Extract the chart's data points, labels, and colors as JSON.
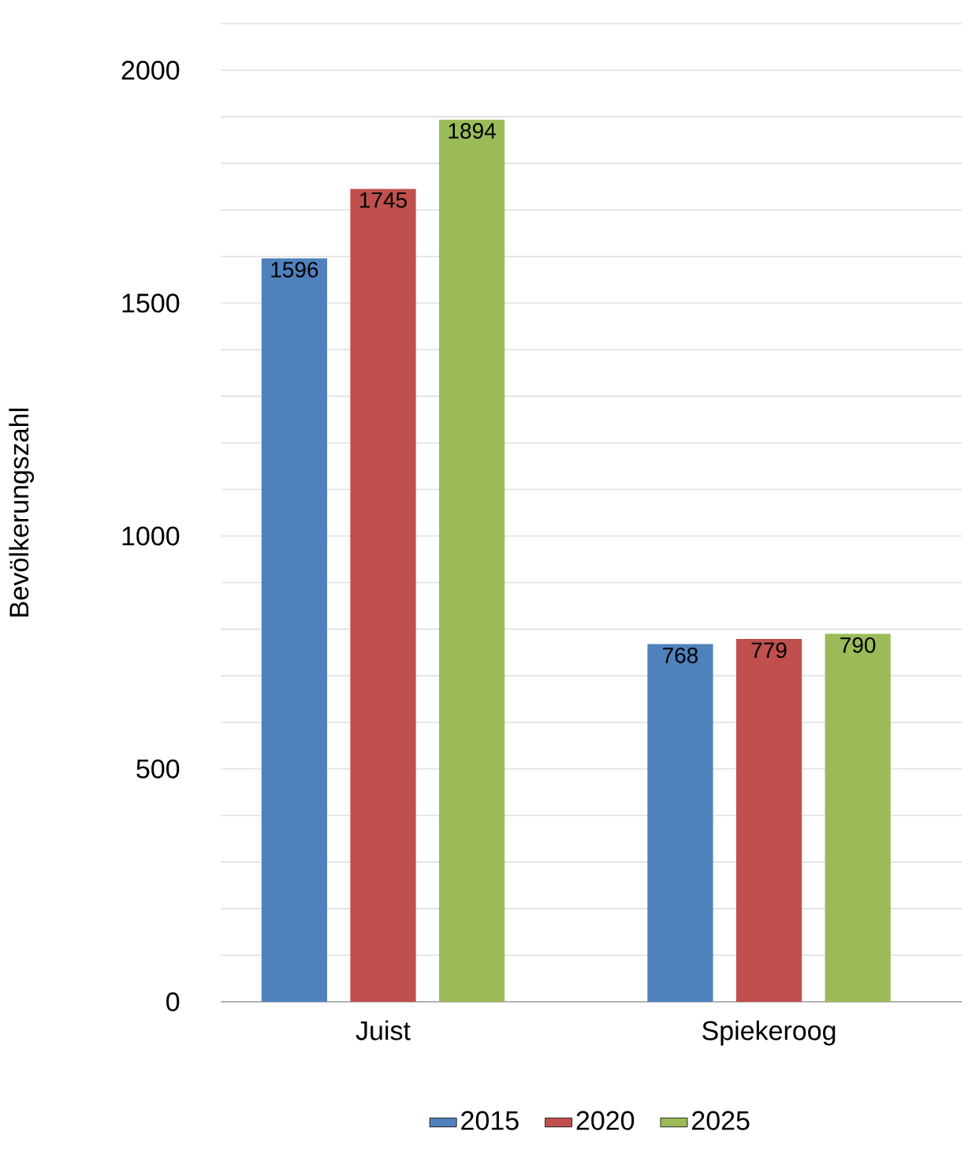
{
  "chart_data": {
    "type": "bar",
    "ylabel": "Bevölkerungszahl",
    "categories": [
      "Juist",
      "Spiekeroog"
    ],
    "series": [
      {
        "name": "2015",
        "color": "#4f81bd",
        "values": [
          1596,
          768
        ]
      },
      {
        "name": "2020",
        "color": "#c0504d",
        "values": [
          1745,
          779
        ]
      },
      {
        "name": "2025",
        "color": "#9bbb59",
        "values": [
          1894,
          790
        ]
      }
    ],
    "ylim": [
      0,
      2100
    ],
    "yticks": [
      0,
      {
        "value": 100,
        "label": null
      },
      {
        "value": 200,
        "label": null
      },
      {
        "value": 300,
        "label": null
      },
      {
        "value": 400,
        "label": null
      },
      500,
      {
        "value": 600,
        "label": null
      },
      {
        "value": 700,
        "label": null
      },
      {
        "value": 800,
        "label": null
      },
      {
        "value": 900,
        "label": null
      },
      1000,
      {
        "value": 1100,
        "label": null
      },
      {
        "value": 1200,
        "label": null
      },
      {
        "value": 1300,
        "label": null
      },
      {
        "value": 1400,
        "label": null
      },
      1500,
      {
        "value": 1600,
        "label": null
      },
      {
        "value": 1700,
        "label": null
      },
      {
        "value": 1800,
        "label": null
      },
      {
        "value": 1900,
        "label": null
      },
      2000,
      {
        "value": 2100,
        "label": null
      }
    ],
    "grid": "y",
    "legend": "bottom",
    "data_labels": true
  }
}
